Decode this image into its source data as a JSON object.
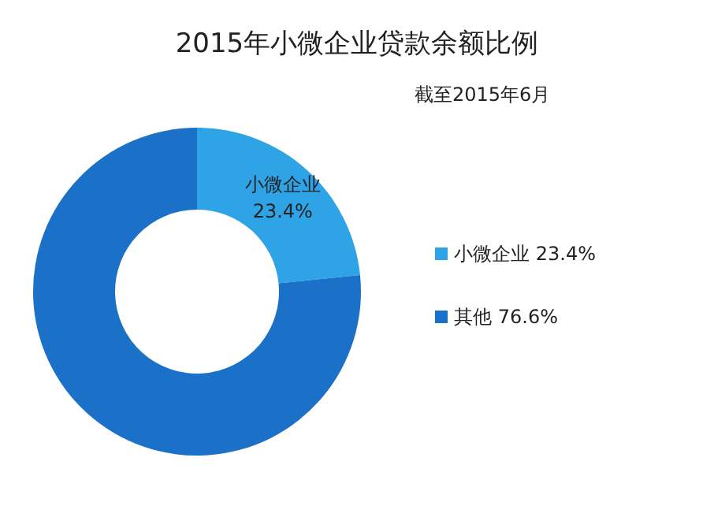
{
  "chart_data": {
    "type": "donut",
    "title": "2015年小微企业贷款余额比例",
    "subtitle": "截至2015年6月",
    "categories": [
      "小微企业 23.4%",
      "其他 76.6%"
    ],
    "values": [
      23.4,
      76.6
    ],
    "colors": [
      "#2ea3e6",
      "#1b70c8"
    ],
    "value_labels": [
      "小微企业 23.4%",
      null
    ],
    "legend": "right"
  }
}
